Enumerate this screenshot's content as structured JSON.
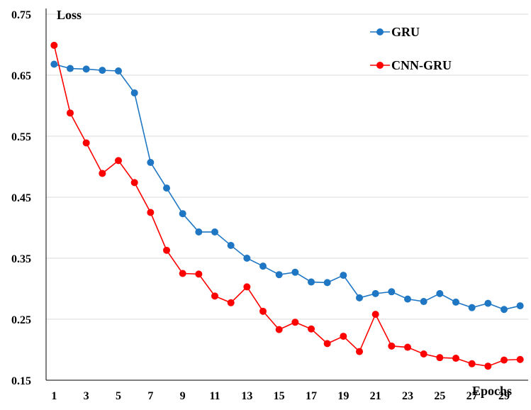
{
  "chart_data": {
    "type": "line",
    "title": "",
    "xlabel": "Epochs",
    "ylabel": "Loss",
    "x": [
      1,
      2,
      3,
      4,
      5,
      6,
      7,
      8,
      9,
      10,
      11,
      12,
      13,
      14,
      15,
      16,
      17,
      18,
      19,
      20,
      21,
      22,
      23,
      24,
      25,
      26,
      27,
      28,
      29,
      30
    ],
    "x_tick_labels": [
      "1",
      "3",
      "5",
      "7",
      "9",
      "11",
      "13",
      "15",
      "17",
      "19",
      "21",
      "23",
      "25",
      "27",
      "29"
    ],
    "x_ticks": [
      1,
      3,
      5,
      7,
      9,
      11,
      13,
      15,
      17,
      19,
      21,
      23,
      25,
      27,
      29
    ],
    "xlim": [
      0.5,
      30.5
    ],
    "ylim": [
      0.15,
      0.75
    ],
    "y_ticks": [
      0.15,
      0.25,
      0.35,
      0.45,
      0.55,
      0.65,
      0.75
    ],
    "y_tick_labels": [
      "0.15",
      "0.25",
      "0.35",
      "0.45",
      "0.55",
      "0.65",
      "0.75"
    ],
    "grid": "horizontal",
    "legend_position": "top-right",
    "series": [
      {
        "name": "GRU",
        "color": "#1f77c4",
        "values": [
          0.668,
          0.661,
          0.66,
          0.658,
          0.657,
          0.621,
          0.507,
          0.465,
          0.423,
          0.393,
          0.393,
          0.371,
          0.35,
          0.337,
          0.323,
          0.327,
          0.311,
          0.31,
          0.322,
          0.285,
          0.292,
          0.295,
          0.283,
          0.279,
          0.292,
          0.278,
          0.269,
          0.276,
          0.266,
          0.272
        ]
      },
      {
        "name": "CNN-GRU",
        "color": "#ff0000",
        "values": [
          0.699,
          0.588,
          0.539,
          0.489,
          0.51,
          0.474,
          0.425,
          0.363,
          0.325,
          0.324,
          0.288,
          0.277,
          0.303,
          0.263,
          0.233,
          0.245,
          0.234,
          0.21,
          0.222,
          0.197,
          0.258,
          0.206,
          0.204,
          0.193,
          0.187,
          0.186,
          0.177,
          0.173,
          0.183,
          0.184
        ]
      }
    ]
  }
}
